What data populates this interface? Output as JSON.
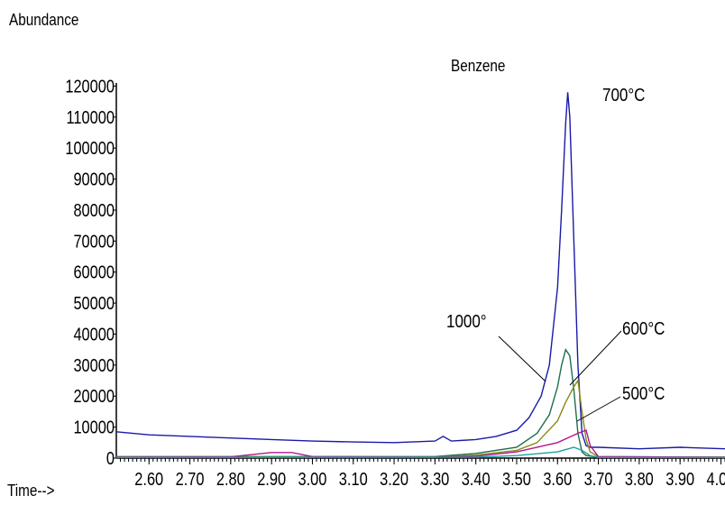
{
  "chart_data": {
    "type": "line",
    "title": "Benzene",
    "ylabel": "Abundance",
    "xlabel": "Time-->",
    "xlim": [
      2.52,
      4.01
    ],
    "ylim": [
      0,
      121000
    ],
    "x_ticks": [
      "2.60",
      "2.70",
      "2.80",
      "2.90",
      "3.00",
      "3.10",
      "3.20",
      "3.30",
      "3.40",
      "3.50",
      "3.60",
      "3.70",
      "3.80",
      "3.90",
      "4.00"
    ],
    "x_tick_values": [
      2.6,
      2.7,
      2.8,
      2.9,
      3.0,
      3.1,
      3.2,
      3.3,
      3.4,
      3.5,
      3.6,
      3.7,
      3.8,
      3.9,
      4.0
    ],
    "y_ticks": [
      "0",
      "10000",
      "20000",
      "30000",
      "40000",
      "50000",
      "60000",
      "70000",
      "80000",
      "90000",
      "100000",
      "110000",
      "120000"
    ],
    "y_tick_values": [
      0,
      10000,
      20000,
      30000,
      40000,
      50000,
      60000,
      70000,
      80000,
      90000,
      100000,
      110000,
      120000
    ],
    "annotations": [
      {
        "text": "700°C",
        "series": 0
      },
      {
        "text": "1000°",
        "series": 1
      },
      {
        "text": "600°C",
        "series": 2
      },
      {
        "text": "500°C",
        "series": 3
      }
    ],
    "series": [
      {
        "color": "#1a1aa8",
        "x": [
          2.52,
          2.6,
          2.7,
          2.8,
          2.9,
          3.0,
          3.1,
          3.2,
          3.3,
          3.32,
          3.34,
          3.4,
          3.45,
          3.5,
          3.53,
          3.56,
          3.58,
          3.6,
          3.61,
          3.62,
          3.625,
          3.63,
          3.64,
          3.65,
          3.66,
          3.67,
          3.68,
          3.7,
          3.8,
          3.9,
          4.01
        ],
        "y": [
          8500,
          7500,
          7000,
          6500,
          6000,
          5500,
          5200,
          5000,
          5500,
          7000,
          5500,
          6000,
          7000,
          9000,
          13000,
          20000,
          30000,
          55000,
          80000,
          108000,
          118000,
          110000,
          70000,
          30000,
          8000,
          4000,
          3500,
          3500,
          3000,
          3500,
          3000
        ]
      },
      {
        "color": "#1e6e50",
        "x": [
          2.52,
          3.3,
          3.4,
          3.5,
          3.55,
          3.58,
          3.6,
          3.61,
          3.62,
          3.63,
          3.64,
          3.65,
          3.66,
          3.67,
          3.7,
          4.01
        ],
        "y": [
          500,
          500,
          1500,
          3500,
          8000,
          14000,
          23000,
          30000,
          35000,
          33000,
          22000,
          8000,
          2000,
          800,
          300,
          300
        ]
      },
      {
        "color": "#8a8a1a",
        "x": [
          2.52,
          3.3,
          3.4,
          3.5,
          3.55,
          3.6,
          3.62,
          3.64,
          3.65,
          3.66,
          3.67,
          3.68,
          3.7,
          4.01
        ],
        "y": [
          300,
          300,
          1000,
          2500,
          5000,
          12000,
          18000,
          23000,
          25000,
          15000,
          6000,
          2000,
          500,
          300
        ]
      },
      {
        "color": "#b01890",
        "x": [
          2.52,
          2.8,
          2.9,
          2.95,
          3.0,
          3.3,
          3.4,
          3.5,
          3.6,
          3.65,
          3.67,
          3.68,
          3.7,
          4.01
        ],
        "y": [
          300,
          400,
          1800,
          1800,
          500,
          300,
          600,
          2000,
          5000,
          8000,
          9000,
          4000,
          500,
          300
        ]
      },
      {
        "color": "#20a0a0",
        "x": [
          2.52,
          3.4,
          3.5,
          3.6,
          3.64,
          3.66,
          3.68,
          3.7,
          4.01
        ],
        "y": [
          200,
          300,
          800,
          2000,
          3500,
          2500,
          800,
          200,
          200
        ]
      }
    ]
  }
}
